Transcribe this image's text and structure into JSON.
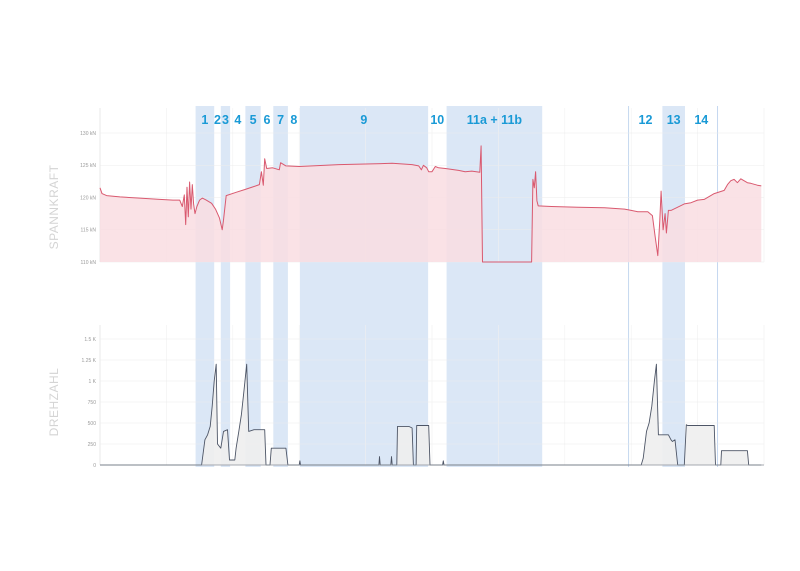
{
  "chart_data": [
    {
      "type": "area",
      "ylabel": "SPANNKRAFT",
      "xlim": [
        0,
        1000
      ],
      "ylim": [
        110,
        130
      ],
      "y_ticks": [
        {
          "value": 130,
          "label": "130 kN"
        },
        {
          "value": 125,
          "label": "125 kN"
        },
        {
          "value": 120,
          "label": "120 kN"
        },
        {
          "value": 115,
          "label": "115 kN"
        },
        {
          "value": 110,
          "label": "110 kN"
        }
      ],
      "grid": true,
      "colors": {
        "line": "#d9596f",
        "fill": "#f9dde2"
      },
      "series": [
        {
          "points": [
            [
              0,
              121.5
            ],
            [
              3,
              120.6
            ],
            [
              10,
              120.3
            ],
            [
              30,
              120.1
            ],
            [
              60,
              119.9
            ],
            [
              90,
              119.7
            ],
            [
              110,
              119.6
            ],
            [
              120,
              119.6
            ],
            [
              124,
              118.6
            ],
            [
              127,
              120.4
            ],
            [
              129,
              115.8
            ],
            [
              131,
              121.6
            ],
            [
              133,
              117.0
            ],
            [
              135,
              122.4
            ],
            [
              137,
              118.2
            ],
            [
              139,
              122.0
            ],
            [
              141,
              119.0
            ],
            [
              143,
              117.5
            ],
            [
              146,
              118.6
            ],
            [
              150,
              119.6
            ],
            [
              154,
              119.9
            ],
            [
              160,
              119.6
            ],
            [
              168,
              119.1
            ],
            [
              174,
              118.2
            ],
            [
              180,
              116.8
            ],
            [
              184,
              115.0
            ],
            [
              186,
              116.5
            ],
            [
              190,
              120.3
            ],
            [
              205,
              120.8
            ],
            [
              220,
              121.3
            ],
            [
              232,
              121.7
            ],
            [
              240,
              122.0
            ],
            [
              243,
              124.0
            ],
            [
              246,
              121.9
            ],
            [
              248,
              126.0
            ],
            [
              251,
              124.5
            ],
            [
              260,
              124.6
            ],
            [
              270,
              124.3
            ],
            [
              272,
              125.4
            ],
            [
              280,
              124.9
            ],
            [
              300,
              124.8
            ],
            [
              320,
              124.9
            ],
            [
              360,
              125.1
            ],
            [
              400,
              125.2
            ],
            [
              440,
              125.3
            ],
            [
              470,
              125.1
            ],
            [
              480,
              124.9
            ],
            [
              484,
              124.3
            ],
            [
              487,
              125.0
            ],
            [
              492,
              124.6
            ],
            [
              495,
              124.0
            ],
            [
              500,
              124.0
            ],
            [
              505,
              124.8
            ],
            [
              510,
              124.6
            ],
            [
              520,
              124.5
            ],
            [
              540,
              124.2
            ],
            [
              550,
              124.0
            ],
            [
              560,
              124.1
            ],
            [
              572,
              123.9
            ],
            [
              574,
              128.0
            ],
            [
              576,
              110.0
            ],
            [
              650,
              110.0
            ],
            [
              652,
              122.8
            ],
            [
              654,
              121.5
            ],
            [
              656,
              124.0
            ],
            [
              658,
              119.5
            ],
            [
              660,
              118.7
            ],
            [
              680,
              118.6
            ],
            [
              720,
              118.5
            ],
            [
              760,
              118.4
            ],
            [
              790,
              118.2
            ],
            [
              800,
              118.0
            ],
            [
              810,
              117.8
            ],
            [
              825,
              117.8
            ],
            [
              832,
              117.2
            ],
            [
              836,
              114.0
            ],
            [
              840,
              111.0
            ],
            [
              843,
              116.5
            ],
            [
              845,
              121.0
            ],
            [
              848,
              115.0
            ],
            [
              851,
              117.5
            ],
            [
              853,
              114.5
            ],
            [
              856,
              118.0
            ],
            [
              860,
              118.0
            ],
            [
              870,
              118.5
            ],
            [
              880,
              119.0
            ],
            [
              890,
              119.2
            ],
            [
              900,
              119.6
            ],
            [
              910,
              119.7
            ],
            [
              925,
              120.6
            ],
            [
              940,
              121.1
            ],
            [
              945,
              122.0
            ],
            [
              950,
              122.6
            ],
            [
              955,
              122.8
            ],
            [
              960,
              122.3
            ],
            [
              965,
              122.9
            ],
            [
              975,
              122.3
            ],
            [
              980,
              122.2
            ],
            [
              990,
              121.9
            ],
            [
              996,
              121.8
            ]
          ]
        }
      ]
    },
    {
      "type": "area",
      "ylabel": "DREHZAHL",
      "xlim": [
        0,
        1000
      ],
      "ylim": [
        0,
        1500
      ],
      "y_ticks": [
        {
          "value": 1500,
          "label": "1.5 K"
        },
        {
          "value": 1250,
          "label": "1.25 K"
        },
        {
          "value": 1000,
          "label": "1 K"
        },
        {
          "value": 750,
          "label": "750"
        },
        {
          "value": 500,
          "label": "500"
        },
        {
          "value": 250,
          "label": "250"
        },
        {
          "value": 0,
          "label": "0"
        }
      ],
      "grid": true,
      "colors": {
        "line": "#4d5566",
        "fill": "#eeeeee"
      },
      "series": [
        {
          "points": [
            [
              0,
              0
            ],
            [
              150,
              0
            ],
            [
              153,
              0
            ],
            [
              158,
              300
            ],
            [
              162,
              360
            ],
            [
              166,
              460
            ],
            [
              169,
              700
            ],
            [
              172,
              1000
            ],
            [
              175,
              1200
            ],
            [
              177,
              250
            ],
            [
              182,
              200
            ],
            [
              186,
              400
            ],
            [
              192,
              420
            ],
            [
              195,
              60
            ],
            [
              200,
              60
            ],
            [
              203,
              60
            ],
            [
              205,
              200
            ],
            [
              209,
              400
            ],
            [
              213,
              600
            ],
            [
              217,
              900
            ],
            [
              221,
              1200
            ],
            [
              224,
              400
            ],
            [
              232,
              420
            ],
            [
              245,
              420
            ],
            [
              248,
              420
            ],
            [
              250,
              0
            ],
            [
              256,
              0
            ],
            [
              258,
              200
            ],
            [
              263,
              200
            ],
            [
              280,
              200
            ],
            [
              283,
              0
            ],
            [
              300,
              0
            ],
            [
              301,
              50
            ],
            [
              302,
              0
            ],
            [
              420,
              0
            ],
            [
              421,
              100
            ],
            [
              422,
              0
            ],
            [
              438,
              0
            ],
            [
              439,
              100
            ],
            [
              440,
              0
            ],
            [
              447,
              0
            ],
            [
              448,
              460
            ],
            [
              465,
              460
            ],
            [
              470,
              440
            ],
            [
              472,
              0
            ],
            [
              476,
              0
            ],
            [
              477,
              470
            ],
            [
              495,
              470
            ],
            [
              497,
              0
            ],
            [
              516,
              0
            ],
            [
              517,
              50
            ],
            [
              518,
              0
            ],
            [
              815,
              0
            ],
            [
              818,
              80
            ],
            [
              823,
              400
            ],
            [
              827,
              500
            ],
            [
              831,
              700
            ],
            [
              835,
              1000
            ],
            [
              838,
              1200
            ],
            [
              841,
              360
            ],
            [
              856,
              360
            ],
            [
              860,
              300
            ],
            [
              862,
              280
            ],
            [
              866,
              300
            ],
            [
              870,
              0
            ],
            [
              880,
              0
            ],
            [
              883,
              480
            ],
            [
              885,
              470
            ],
            [
              925,
              470
            ],
            [
              927,
              0
            ],
            [
              935,
              0
            ],
            [
              936,
              170
            ],
            [
              950,
              170
            ],
            [
              975,
              170
            ],
            [
              977,
              0
            ],
            [
              985,
              0
            ],
            [
              996,
              0
            ]
          ]
        }
      ]
    }
  ],
  "phases": [
    {
      "label": "1",
      "x0": 144,
      "x1": 172
    },
    {
      "label": "2",
      "x0": 172,
      "x1": 182,
      "nolabel_band": true
    },
    {
      "label": "3",
      "x0": 182,
      "x1": 196
    },
    {
      "label": "4",
      "x0": 196,
      "x1": 219,
      "nolabel_band": true
    },
    {
      "label": "5",
      "x0": 219,
      "x1": 242
    },
    {
      "label": "6",
      "x0": 242,
      "x1": 261,
      "nolabel_band": true
    },
    {
      "label": "7",
      "x0": 261,
      "x1": 283
    },
    {
      "label": "8",
      "x0": 283,
      "x1": 301,
      "nolabel_band": true
    },
    {
      "label": "9",
      "x0": 301,
      "x1": 494
    },
    {
      "label": "10",
      "x0": 494,
      "x1": 522,
      "nolabel_band": true
    },
    {
      "label": "11a + 11b",
      "x0": 522,
      "x1": 666
    },
    {
      "label": "12",
      "x0": 796,
      "x1": 847,
      "nolabel_band": true
    },
    {
      "label": "13",
      "x0": 847,
      "x1": 881
    },
    {
      "label": "14",
      "x0": 881,
      "x1": 930,
      "nolabel_band": true
    }
  ]
}
